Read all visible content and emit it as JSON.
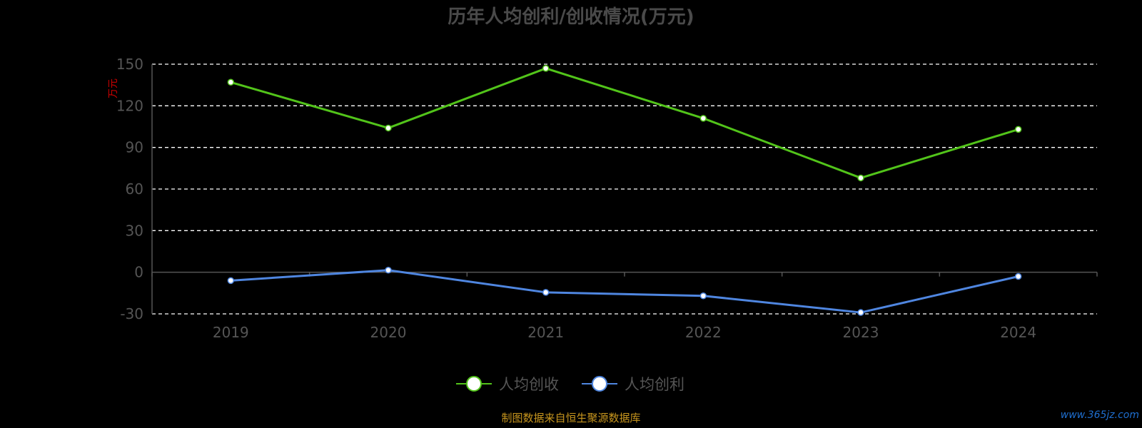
{
  "chart_data": {
    "type": "line",
    "title": "历年人均创利/创收情况(万元)",
    "ylabel": "万元",
    "xlabel": "",
    "categories": [
      "2019",
      "2020",
      "2021",
      "2022",
      "2023",
      "2024"
    ],
    "series": [
      {
        "name": "人均创收",
        "color": "#52c41a",
        "values": [
          137,
          104,
          147,
          111,
          68,
          103
        ]
      },
      {
        "name": "人均创利",
        "color": "#4f86e0",
        "values": [
          -6,
          1.5,
          -14.5,
          -17,
          -29,
          -3
        ]
      }
    ],
    "ylim": [
      -30,
      150
    ],
    "yticks": [
      150,
      120,
      90,
      60,
      30,
      0,
      -30
    ],
    "grid": true,
    "legend_position": "bottom-center"
  },
  "footer": {
    "source": "制图数据来自恒生聚源数据库",
    "watermark": "www.365jz.com"
  }
}
